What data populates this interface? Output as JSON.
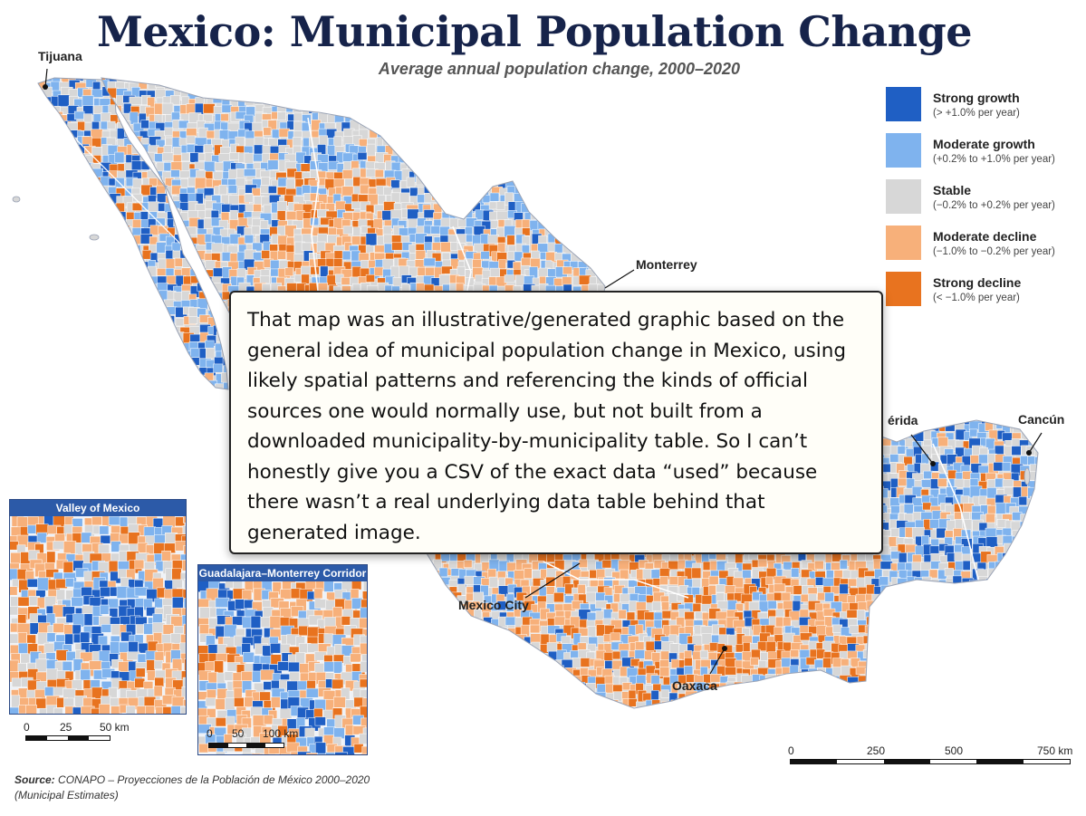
{
  "title": "Mexico: Municipal Population Change",
  "subtitle": "Average annual population change, 2000–2020",
  "legend": [
    {
      "label": "Strong growth",
      "range": "(> +1.0% per year)",
      "color": "#1f5fc4"
    },
    {
      "label": "Moderate growth",
      "range": "(+0.2% to +1.0% per year)",
      "color": "#7fb3ee"
    },
    {
      "label": "Stable",
      "range": "(−0.2% to +0.2% per year)",
      "color": "#d7d7d7"
    },
    {
      "label": "Moderate decline",
      "range": "(−1.0% to −0.2% per year)",
      "color": "#f7b07a"
    },
    {
      "label": "Strong decline",
      "range": "(< −1.0% per year)",
      "color": "#e8731f"
    }
  ],
  "cities": {
    "tijuana": "Tijuana",
    "monterrey": "Monterrey",
    "merida": "érida",
    "cancun": "Cancún",
    "mexico_city": "Mexico City",
    "oaxaca": "Oaxaca"
  },
  "insets": {
    "valley": {
      "title": "Valley of Mexico",
      "scale_labels": [
        "0",
        "25",
        "50 km"
      ]
    },
    "corridor": {
      "title": "Guadalajara–Monterrey Corridor",
      "scale_labels": [
        "0",
        "50",
        "100 km"
      ]
    }
  },
  "main_scale": {
    "labels": [
      "0",
      "250",
      "500",
      "750 km"
    ]
  },
  "notice": {
    "text": "That map was an illustrative/generated graphic based on the general idea of municipal population change in Mexico, using likely spatial patterns and referencing the kinds of official sources one would normally use, but not built from a downloaded municipality-by-municipality table. So I can’t honestly give you a CSV of the exact data “used” because there wasn’t a real underlying data table behind that generated image."
  },
  "source": {
    "label": "Source:",
    "text": "CONAPO – Proyecciones de la Población de México 2000–2020",
    "note": "(Municipal Estimates)"
  }
}
